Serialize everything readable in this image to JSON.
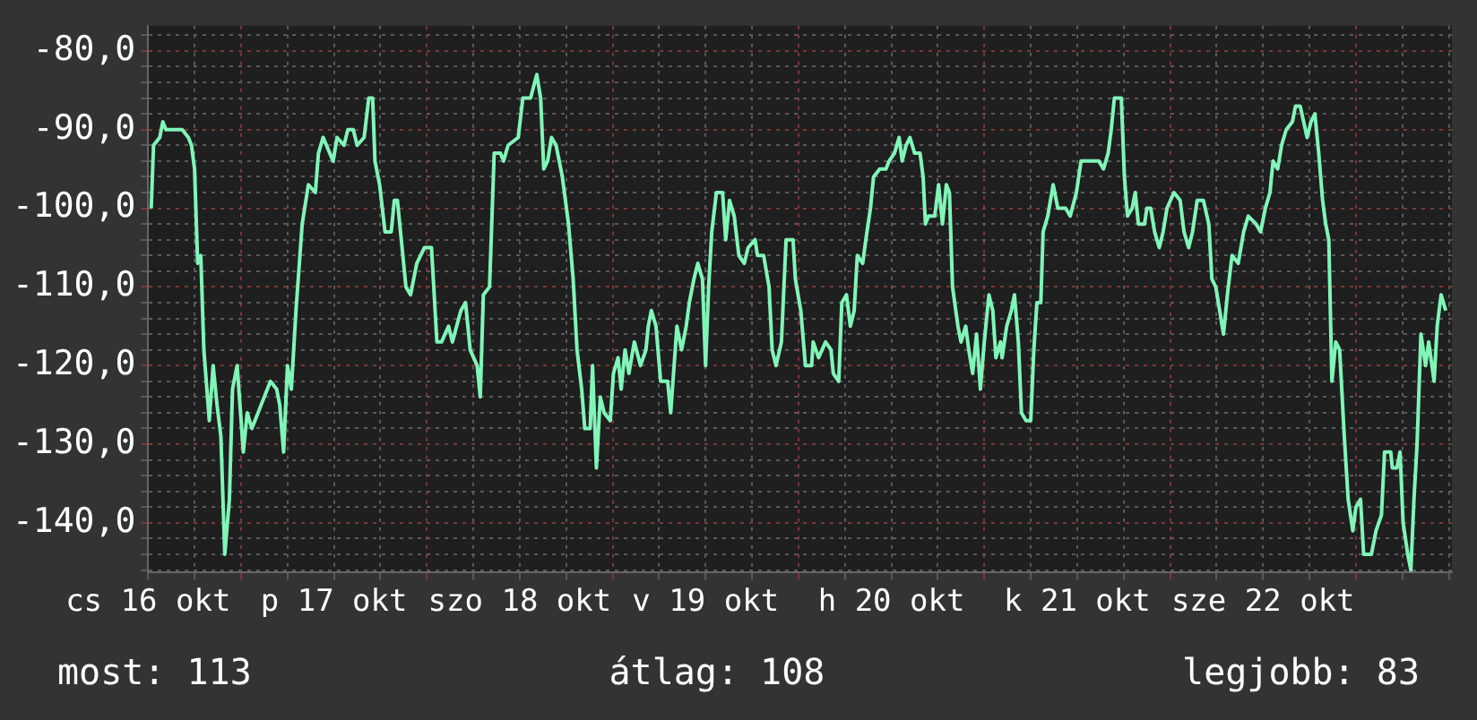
{
  "chart_data": {
    "type": "line",
    "color": "#80f5b8",
    "grid": true,
    "annotations": [
      "most: 113",
      "átlag: 108",
      "legjobb: 83"
    ],
    "xlim": [
      "--10-16T12:00",
      "--10-23T12:24"
    ],
    "xticks": [
      {
        "value": "--10-16T12:00",
        "label": "cs 16 okt"
      },
      {
        "value": "--10-16T18:00",
        "label": null
      },
      {
        "value": "--10-17T00:00",
        "label": null
      },
      {
        "value": "--10-17T06:00",
        "label": null
      },
      {
        "value": "--10-17T12:00",
        "label": "p 17 okt"
      },
      {
        "value": "--10-17T18:00",
        "label": null
      },
      {
        "value": "--10-18T00:00",
        "label": null
      },
      {
        "value": "--10-18T06:00",
        "label": null
      },
      {
        "value": "--10-18T12:00",
        "label": "szo 18 okt"
      },
      {
        "value": "--10-18T18:00",
        "label": null
      },
      {
        "value": "--10-19T00:00",
        "label": null
      },
      {
        "value": "--10-19T06:00",
        "label": null
      },
      {
        "value": "--10-19T12:00",
        "label": "v 19 okt"
      },
      {
        "value": "--10-19T18:00",
        "label": null
      },
      {
        "value": "--10-20T00:00",
        "label": null
      },
      {
        "value": "--10-20T06:00",
        "label": null
      },
      {
        "value": "--10-20T12:00",
        "label": "h 20 okt"
      },
      {
        "value": "--10-20T18:00",
        "label": null
      },
      {
        "value": "--10-21T00:00",
        "label": null
      },
      {
        "value": "--10-21T06:00",
        "label": null
      },
      {
        "value": "--10-21T12:00",
        "label": "k 21 okt"
      },
      {
        "value": "--10-21T18:00",
        "label": null
      },
      {
        "value": "--10-22T00:00",
        "label": null
      },
      {
        "value": "--10-22T06:00",
        "label": null
      },
      {
        "value": "--10-22T12:00",
        "label": "sze 22 okt"
      },
      {
        "value": "--10-22T18:00",
        "label": null
      },
      {
        "value": "--10-23T00:00",
        "label": null
      },
      {
        "value": "--10-23T06:00",
        "label": null
      },
      {
        "value": "--10-23T12:00",
        "label": null
      }
    ],
    "ylim": [
      -146.3,
      -76.8
    ],
    "yticks": [
      {
        "value": -146,
        "label": null
      },
      {
        "value": -144,
        "label": null
      },
      {
        "value": -142,
        "label": null
      },
      {
        "value": -140,
        "label": "-140,0"
      },
      {
        "value": -138,
        "label": null
      },
      {
        "value": -136,
        "label": null
      },
      {
        "value": -134,
        "label": null
      },
      {
        "value": -132,
        "label": null
      },
      {
        "value": -130,
        "label": "-130,0"
      },
      {
        "value": -128,
        "label": null
      },
      {
        "value": -126,
        "label": null
      },
      {
        "value": -124,
        "label": null
      },
      {
        "value": -122,
        "label": null
      },
      {
        "value": -120,
        "label": "-120,0"
      },
      {
        "value": -118,
        "label": null
      },
      {
        "value": -116,
        "label": null
      },
      {
        "value": -114,
        "label": null
      },
      {
        "value": -112,
        "label": null
      },
      {
        "value": -110,
        "label": "-110,0"
      },
      {
        "value": -108,
        "label": null
      },
      {
        "value": -106,
        "label": null
      },
      {
        "value": -104,
        "label": null
      },
      {
        "value": -102,
        "label": null
      },
      {
        "value": -100,
        "label": "-100,0"
      },
      {
        "value": -98,
        "label": null
      },
      {
        "value": -96,
        "label": null
      },
      {
        "value": -94,
        "label": null
      },
      {
        "value": -92,
        "label": null
      },
      {
        "value": -90,
        "label": "-90,0"
      },
      {
        "value": -88,
        "label": null
      },
      {
        "value": -86,
        "label": null
      },
      {
        "value": -84,
        "label": null
      },
      {
        "value": -82,
        "label": null
      },
      {
        "value": -80,
        "label": "-80,0"
      },
      {
        "value": -78,
        "label": null
      }
    ],
    "x": [
      "--10-16T12:24",
      "--10-16T12:42",
      "--10-16T13:30",
      "--10-16T13:54",
      "--10-16T14:18",
      "--10-16T16:24",
      "--10-16T17:12",
      "--10-16T17:36",
      "--10-16T18:00",
      "--10-16T18:24",
      "--10-16T18:48",
      "--10-16T19:12",
      "--10-16T19:54",
      "--10-16T20:24",
      "--10-16T20:54",
      "--10-16T21:24",
      "--10-16T21:54",
      "--10-16T22:30",
      "--10-16T22:54",
      "--10-16T23:30",
      "--10-17T00:18",
      "--10-17T00:48",
      "--10-17T01:24",
      "--10-17T02:36",
      "--10-17T03:48",
      "--10-17T04:36",
      "--10-17T05:00",
      "--10-17T05:30",
      "--10-17T06:00",
      "--10-17T06:30",
      "--10-17T07:06",
      "--10-17T07:54",
      "--10-17T08:42",
      "--10-17T09:36",
      "--10-17T10:00",
      "--10-17T10:36",
      "--10-17T11:54",
      "--10-17T12:24",
      "--10-17T13:18",
      "--10-17T13:48",
      "--10-17T14:30",
      "--10-17T15:00",
      "--10-17T15:54",
      "--10-17T16:30",
      "--10-17T17:00",
      "--10-17T17:18",
      "--10-17T17:54",
      "--10-17T18:36",
      "--10-17T19:24",
      "--10-17T19:48",
      "--10-17T20:12",
      "--10-17T20:36",
      "--10-17T21:18",
      "--10-17T21:54",
      "--10-17T22:42",
      "--10-17T23:42",
      "--10-18T00:36",
      "--10-18T01:18",
      "--10-18T01:54",
      "--10-18T02:48",
      "--10-18T03:18",
      "--10-18T04:24",
      "--10-18T05:00",
      "--10-18T05:36",
      "--10-18T06:30",
      "--10-18T06:54",
      "--10-18T07:18",
      "--10-18T08:06",
      "--10-18T08:42",
      "--10-18T09:30",
      "--10-18T09:54",
      "--10-18T10:30",
      "--10-18T11:48",
      "--10-18T12:24",
      "--10-18T13:24",
      "--10-18T14:12",
      "--10-18T14:42",
      "--10-18T15:06",
      "--10-18T15:36",
      "--10-18T16:06",
      "--10-18T16:42",
      "--10-18T17:30",
      "--10-18T18:18",
      "--10-18T18:54",
      "--10-18T19:24",
      "--10-18T20:00",
      "--10-18T20:24",
      "--10-18T21:06",
      "--10-18T21:24",
      "--10-18T21:54",
      "--10-18T22:24",
      "--10-18T22:54",
      "--10-18T23:42",
      "--10-19T00:06",
      "--10-19T00:42",
      "--10-19T01:06",
      "--10-19T01:36",
      "--10-19T02:06",
      "--10-19T02:48",
      "--10-19T03:36",
      "--10-19T04:18",
      "--10-19T04:36",
      "--10-19T05:00",
      "--10-19T05:36",
      "--10-19T06:12",
      "--10-19T07:06",
      "--10-19T07:30",
      "--10-19T08:18",
      "--10-19T08:54",
      "--10-19T09:30",
      "--10-19T09:54",
      "--10-19T10:30",
      "--10-19T11:00",
      "--10-19T11:36",
      "--10-19T12:00",
      "--10-19T12:24",
      "--10-19T12:48",
      "--10-19T13:24",
      "--10-19T14:12",
      "--10-19T14:36",
      "--10-19T15:06",
      "--10-19T15:42",
      "--10-19T16:18",
      "--10-19T17:00",
      "--10-19T17:30",
      "--10-19T18:24",
      "--10-19T18:42",
      "--10-19T19:30",
      "--10-19T20:12",
      "--10-19T20:36",
      "--10-19T21:06",
      "--10-19T21:48",
      "--10-19T22:24",
      "--10-19T23:18",
      "--10-19T23:36",
      "--10-20T00:18",
      "--10-20T00:54",
      "--10-20T01:42",
      "--10-20T01:54",
      "--10-20T02:36",
      "--10-20T03:30",
      "--10-20T04:12",
      "--10-20T04:30",
      "--10-20T05:12",
      "--10-20T05:36",
      "--10-20T06:12",
      "--10-20T06:42",
      "--10-20T07:12",
      "--10-20T07:36",
      "--10-20T08:18",
      "--10-20T08:42",
      "--10-20T09:18",
      "--10-20T09:42",
      "--10-20T10:30",
      "--10-20T11:18",
      "--10-20T11:42",
      "--10-20T12:24",
      "--10-20T13:00",
      "--10-20T13:24",
      "--10-20T13:54",
      "--10-20T14:24",
      "--10-20T15:00",
      "--10-20T15:42",
      "--10-20T16:06",
      "--10-20T16:24",
      "--10-20T16:48",
      "--10-20T17:36",
      "--10-20T18:06",
      "--10-20T18:36",
      "--10-20T19:06",
      "--10-20T19:30",
      "--10-20T19:54",
      "--10-20T20:36",
      "--10-20T21:00",
      "--10-20T21:36",
      "--10-20T22:00",
      "--10-20T22:30",
      "--10-20T23:00",
      "--10-20T23:30",
      "--10-21T00:00",
      "--10-21T00:36",
      "--10-21T01:06",
      "--10-21T01:30",
      "--10-21T02:06",
      "--10-21T02:18",
      "--10-21T02:54",
      "--10-21T03:30",
      "--10-21T03:54",
      "--10-21T04:24",
      "--10-21T04:48",
      "--10-21T05:24",
      "--10-21T06:00",
      "--10-21T06:24",
      "--10-21T06:48",
      "--10-21T07:18",
      "--10-21T07:36",
      "--10-21T08:12",
      "--10-21T08:54",
      "--10-21T09:30",
      "--10-21T10:30",
      "--10-21T11:06",
      "--10-21T11:54",
      "--10-21T12:30",
      "--10-21T13:36",
      "--10-21T14:48",
      "--10-21T15:24",
      "--10-21T16:00",
      "--10-21T16:24",
      "--10-21T16:48",
      "--10-21T17:42",
      "--10-21T18:06",
      "--10-21T18:30",
      "--10-21T19:06",
      "--10-21T19:30",
      "--10-21T19:54",
      "--10-21T20:42",
      "--10-21T21:00",
      "--10-21T21:30",
      "--10-21T22:00",
      "--10-21T22:36",
      "--10-21T23:06",
      "--10-21T23:36",
      "--10-22T00:30",
      "--10-22T01:18",
      "--10-22T01:48",
      "--10-22T02:24",
      "--10-22T02:54",
      "--10-22T03:30",
      "--10-22T04:18",
      "--10-22T05:00",
      "--10-22T05:24",
      "--10-22T05:54",
      "--10-22T06:24",
      "--10-22T06:54",
      "--10-22T07:24",
      "--10-22T08:00",
      "--10-22T08:48",
      "--10-22T09:30",
      "--10-22T10:06",
      "--10-22T11:06",
      "--10-22T11:42",
      "--10-22T12:18",
      "--10-22T12:54",
      "--10-22T13:18",
      "--10-22T13:54",
      "--10-22T14:24",
      "--10-22T15:00",
      "--10-22T15:48",
      "--10-22T16:12",
      "--10-22T16:48",
      "--10-22T17:42",
      "--10-22T18:12",
      "--10-22T18:42",
      "--10-22T19:12",
      "--10-22T19:42",
      "--10-22T20:06",
      "--10-22T20:30",
      "--10-22T20:54",
      "--10-22T21:24",
      "--10-22T21:54",
      "--10-22T22:30",
      "--10-22T23:00",
      "--10-22T23:36",
      "--10-23T00:00",
      "--10-23T00:36",
      "--10-23T01:00",
      "--10-23T02:00",
      "--10-23T02:36",
      "--10-23T03:18",
      "--10-23T03:42",
      "--10-23T04:30",
      "--10-23T04:42",
      "--10-23T05:18",
      "--10-23T05:42",
      "--10-23T06:06",
      "--10-23T06:42",
      "--10-23T07:06",
      "--10-23T07:30",
      "--10-23T07:54",
      "--10-23T08:24",
      "--10-23T09:00",
      "--10-23T09:24",
      "--10-23T10:06",
      "--10-23T10:30",
      "--10-23T11:00",
      "--10-23T11:36"
    ],
    "values": [
      -100,
      -92,
      -91,
      -89,
      -90,
      -90,
      -91,
      -92,
      -95,
      -107,
      -106,
      -118,
      -127,
      -120,
      -125,
      -129,
      -144,
      -137,
      -123,
      -120,
      -131,
      -126,
      -128,
      -125,
      -122,
      -123,
      -125,
      -131,
      -120,
      -123,
      -113,
      -102,
      -97,
      -98,
      -93,
      -91,
      -94,
      -91,
      -92,
      -90,
      -90,
      -92,
      -91,
      -86,
      -86,
      -94,
      -97,
      -103,
      -103,
      -99,
      -99,
      -103,
      -110,
      -111,
      -107,
      -105,
      -105,
      -117,
      -117,
      -115,
      -117,
      -113,
      -112,
      -118,
      -120,
      -124,
      -111,
      -110,
      -93,
      -93,
      -94,
      -92,
      -91,
      -86,
      -86,
      -83,
      -86,
      -95,
      -94,
      -91,
      -92,
      -96,
      -102,
      -109,
      -118,
      -123,
      -128,
      -128,
      -120,
      -133,
      -124,
      -126,
      -127,
      -121,
      -119,
      -123,
      -118,
      -121,
      -117,
      -120,
      -118,
      -115,
      -113,
      -115,
      -122,
      -122,
      -126,
      -115,
      -118,
      -115,
      -112,
      -109,
      -107,
      -109,
      -120,
      -110,
      -103,
      -98,
      -98,
      -104,
      -99,
      -101,
      -106,
      -107,
      -105,
      -104,
      -106,
      -106,
      -110,
      -118,
      -120,
      -117,
      -104,
      -104,
      -109,
      -113,
      -120,
      -120,
      -117,
      -119,
      -117,
      -118,
      -121,
      -122,
      -112,
      -111,
      -115,
      -113,
      -106,
      -107,
      -104,
      -100,
      -96,
      -95,
      -95,
      -94,
      -93,
      -91,
      -94,
      -92,
      -91,
      -93,
      -93,
      -96,
      -102,
      -101,
      -101,
      -97,
      -102,
      -97,
      -98,
      -110,
      -115,
      -117,
      -115,
      -118,
      -121,
      -116,
      -123,
      -117,
      -111,
      -113,
      -119,
      -117,
      -119,
      -115,
      -113,
      -111,
      -117,
      -126,
      -127,
      -127,
      -118,
      -112,
      -112,
      -103,
      -101,
      -97,
      -100,
      -100,
      -101,
      -98,
      -94,
      -94,
      -94,
      -95,
      -93,
      -90,
      -86,
      -86,
      -96,
      -101,
      -100,
      -98,
      -102,
      -102,
      -100,
      -100,
      -103,
      -105,
      -103,
      -100,
      -98,
      -99,
      -103,
      -105,
      -103,
      -99,
      -99,
      -102,
      -109,
      -110,
      -113,
      -116,
      -111,
      -106,
      -107,
      -103,
      -101,
      -102,
      -103,
      -100,
      -98,
      -94,
      -95,
      -92,
      -90,
      -89,
      -87,
      -87,
      -91,
      -89,
      -88,
      -93,
      -99,
      -102,
      -104,
      -122,
      -117,
      -118,
      -129,
      -137,
      -141,
      -138,
      -137,
      -144,
      -144,
      -141,
      -139,
      -131,
      -131,
      -133,
      -133,
      -131,
      -140,
      -144,
      -146,
      -137,
      -130,
      -116,
      -120,
      -117,
      -122,
      -115,
      -111,
      -113
    ]
  }
}
